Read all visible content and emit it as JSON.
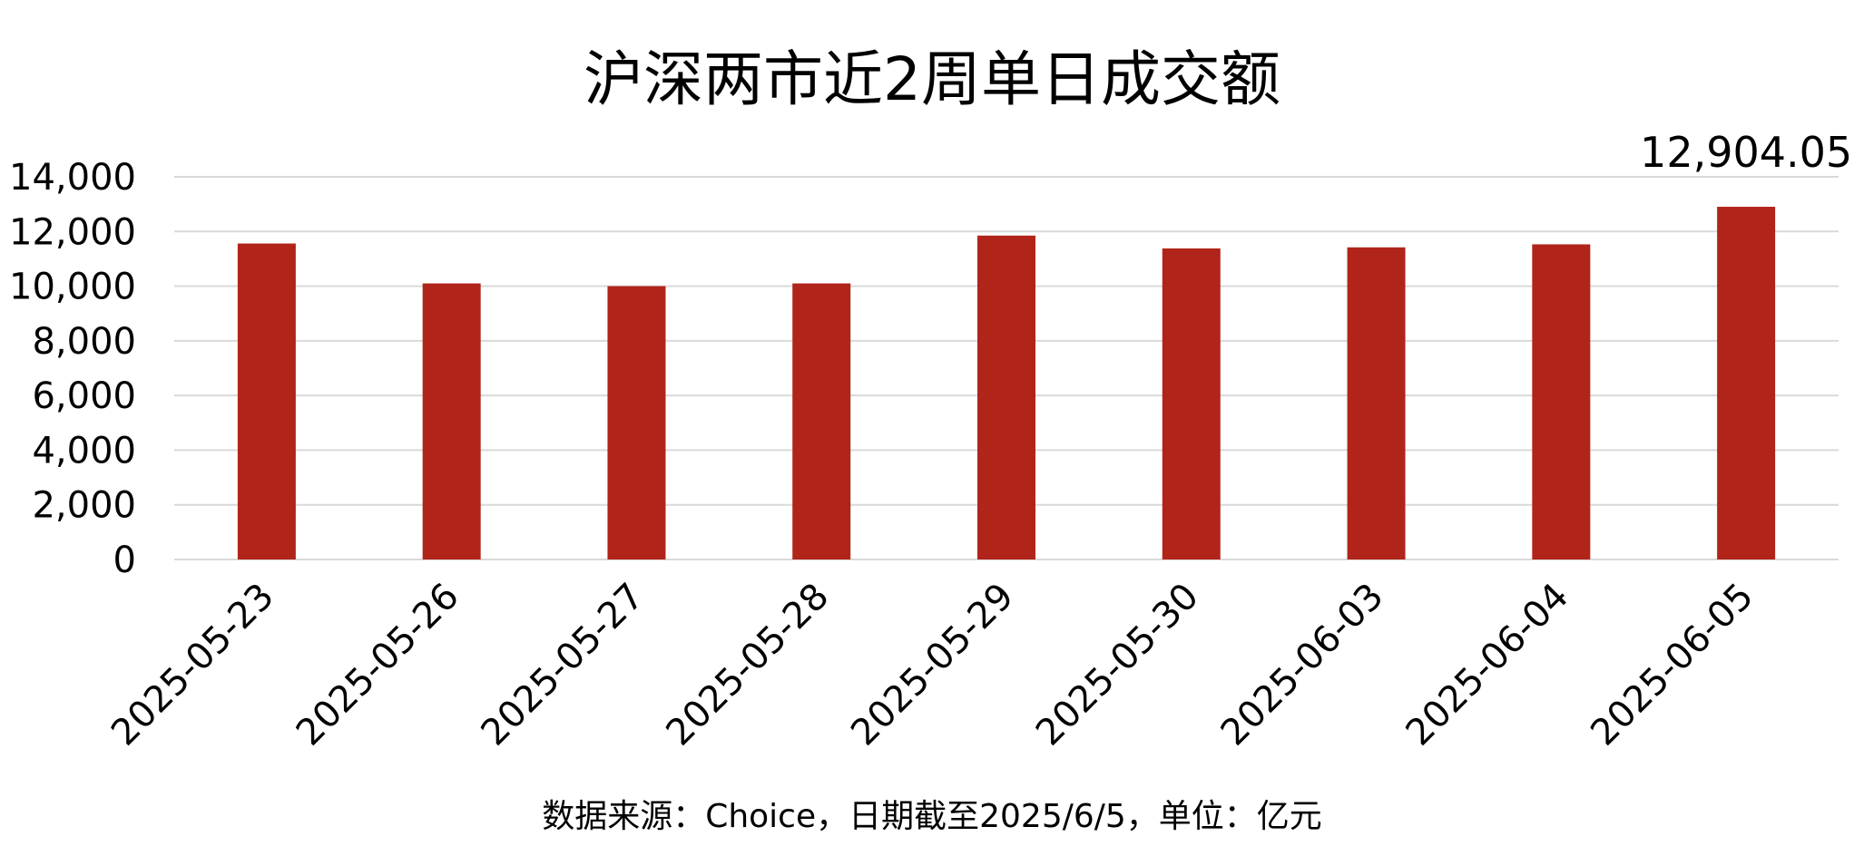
{
  "chart_data": {
    "type": "bar",
    "title": "沪深两市近2周单日成交额",
    "categories": [
      "2025-05-23",
      "2025-05-26",
      "2025-05-27",
      "2025-05-28",
      "2025-05-29",
      "2025-05-30",
      "2025-06-03",
      "2025-06-04",
      "2025-06-05"
    ],
    "values": [
      11560,
      10100,
      10000,
      10100,
      11850,
      11380,
      11420,
      11530,
      12904.05
    ],
    "ylim": [
      0,
      14000
    ],
    "yticks": [
      0,
      2000,
      4000,
      6000,
      8000,
      10000,
      12000,
      14000
    ],
    "ytick_labels": [
      "0",
      "2,000",
      "4,000",
      "6,000",
      "8,000",
      "10,000",
      "12,000",
      "14,000"
    ],
    "data_label": {
      "index": 8,
      "text": "12,904.05"
    },
    "grid": true,
    "legend": "none",
    "bar_color": "#B1241A",
    "grid_color": "#D9D9D9",
    "source": "数据来源：Choice，日期截至2025/6/5，单位：亿元"
  }
}
